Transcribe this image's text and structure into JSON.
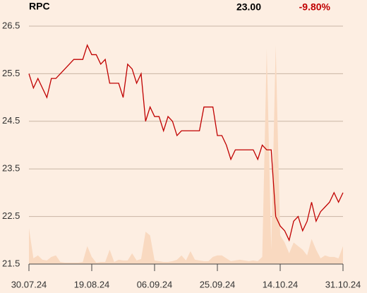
{
  "chart_data": {
    "type": "line",
    "title": "RPC",
    "last_price": "23.00",
    "change": "-9.80%",
    "categories": [
      "30.07.24",
      null,
      null,
      null,
      null,
      null,
      null,
      null,
      null,
      null,
      null,
      null,
      null,
      null,
      "19.08.24",
      null,
      null,
      null,
      null,
      null,
      null,
      null,
      null,
      null,
      null,
      null,
      null,
      null,
      "06.09.24",
      null,
      null,
      null,
      null,
      null,
      null,
      null,
      null,
      null,
      null,
      null,
      null,
      null,
      "25.09.24",
      null,
      null,
      null,
      null,
      null,
      null,
      null,
      null,
      null,
      null,
      null,
      null,
      null,
      "14.10.24",
      null,
      null,
      null,
      null,
      null,
      null,
      null,
      null,
      null,
      null,
      null,
      null,
      null,
      "31.10.24"
    ],
    "series": [
      {
        "name": "RPC",
        "color": "#c00000",
        "values": [
          25.5,
          25.2,
          25.4,
          25.2,
          25.0,
          25.4,
          25.4,
          25.5,
          25.6,
          25.7,
          25.8,
          25.8,
          25.8,
          26.1,
          25.9,
          25.9,
          25.7,
          25.8,
          25.3,
          25.3,
          25.3,
          25.0,
          25.7,
          25.6,
          25.3,
          25.5,
          24.5,
          24.8,
          24.6,
          24.6,
          24.3,
          24.6,
          24.5,
          24.2,
          24.3,
          24.3,
          24.3,
          24.3,
          24.3,
          24.8,
          24.8,
          24.8,
          24.2,
          24.2,
          24.0,
          23.7,
          23.9,
          23.9,
          23.9,
          23.9,
          23.9,
          23.7,
          24.0,
          23.9,
          23.9,
          22.5,
          22.3,
          22.2,
          22.0,
          22.4,
          22.5,
          22.2,
          22.4,
          22.8,
          22.4,
          22.6,
          22.7,
          22.8,
          23.0,
          22.8,
          23.0
        ]
      },
      {
        "name": "Volume",
        "color": "#f9d9c0",
        "axis": "volume",
        "values": [
          50,
          8,
          12,
          6,
          5,
          10,
          12,
          3,
          2,
          2,
          2,
          2,
          3,
          25,
          10,
          2,
          3,
          3,
          20,
          3,
          6,
          5,
          5,
          15,
          5,
          7,
          45,
          40,
          5,
          4,
          3,
          3,
          4,
          6,
          12,
          5,
          18,
          6,
          5,
          4,
          4,
          10,
          12,
          12,
          8,
          4,
          5,
          6,
          5,
          4,
          5,
          4,
          10,
          300,
          20,
          305,
          40,
          30,
          15,
          30,
          25,
          20,
          12,
          35,
          20,
          8,
          12,
          10,
          10,
          8,
          25
        ]
      }
    ],
    "ylim": [
      21.5,
      26.5
    ],
    "yticks": [
      21.5,
      22.5,
      23.5,
      24.5,
      25.5,
      26.5
    ],
    "grid": true
  }
}
